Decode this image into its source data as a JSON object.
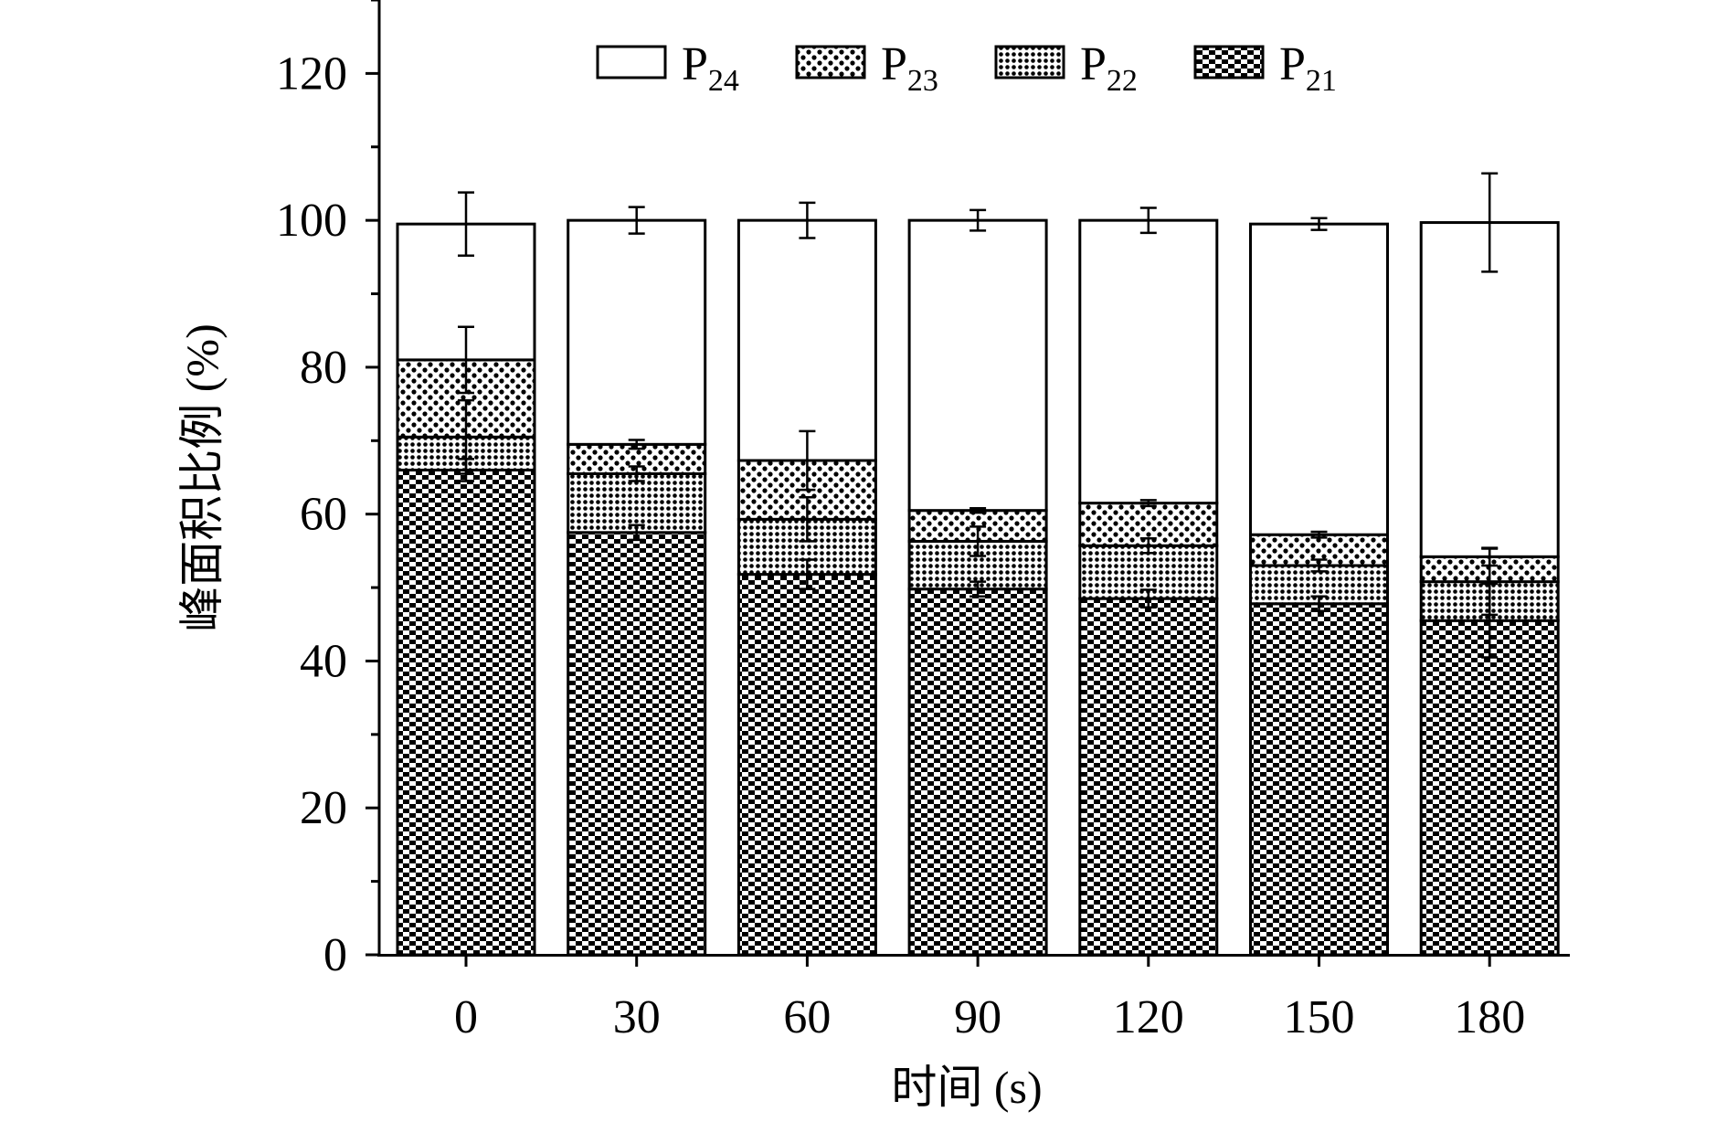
{
  "chart_data": {
    "type": "bar",
    "stacked": true,
    "title": "",
    "xlabel": "时间 (s)",
    "ylabel": "峰面积比例 (%)",
    "ylim": [
      0,
      130
    ],
    "yticks": [
      "0",
      "20",
      "40",
      "60",
      "80",
      "100",
      "120"
    ],
    "categories": [
      "0",
      "30",
      "60",
      "90",
      "120",
      "150",
      "180"
    ],
    "legend_position": "top",
    "series": [
      {
        "name": "P21",
        "label_main": "P",
        "label_sub": "21",
        "pattern": "checker",
        "values": [
          66.0,
          57.5,
          51.8,
          49.8,
          48.5,
          47.8,
          45.5
        ],
        "errors": [
          1.5,
          1.0,
          2.0,
          1.0,
          1.2,
          1.0,
          5.0
        ]
      },
      {
        "name": "P22",
        "label_main": "P",
        "label_sub": "22",
        "pattern": "dense-dots",
        "values": [
          4.5,
          8.0,
          7.5,
          6.5,
          7.2,
          5.2,
          5.3
        ],
        "errors": [
          5.0,
          1.0,
          3.0,
          2.0,
          1.0,
          0.8,
          4.5
        ]
      },
      {
        "name": "P23",
        "label_main": "P",
        "label_sub": "23",
        "pattern": "sparse-dots",
        "values": [
          10.5,
          4.0,
          8.0,
          4.2,
          5.8,
          4.2,
          3.4
        ],
        "errors": [
          4.5,
          0.6,
          4.0,
          0.3,
          0.4,
          0.4,
          1.2
        ]
      },
      {
        "name": "P24",
        "label_main": "P",
        "label_sub": "24",
        "pattern": "none",
        "values": [
          18.5,
          30.5,
          32.7,
          39.5,
          38.5,
          42.3,
          45.5
        ],
        "errors": [
          4.3,
          1.8,
          2.4,
          1.4,
          1.7,
          0.8,
          6.7
        ]
      }
    ]
  }
}
